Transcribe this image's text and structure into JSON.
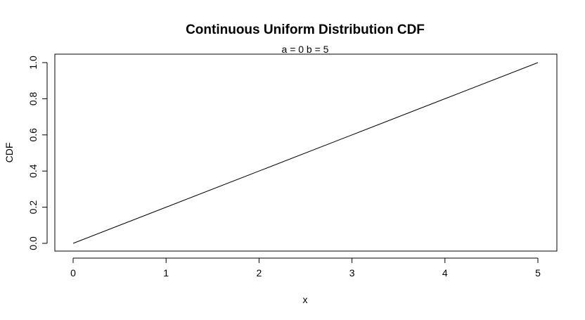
{
  "chart_data": {
    "type": "line",
    "title": "Continuous Uniform Distribution CDF",
    "subtitle": "a = 0  b = 5",
    "xlabel": "x",
    "ylabel": "CDF",
    "xlim": [
      0,
      5
    ],
    "ylim": [
      0,
      1
    ],
    "x_ticks": [
      0,
      1,
      2,
      3,
      4,
      5
    ],
    "x_tick_labels": [
      "0",
      "1",
      "2",
      "3",
      "4",
      "5"
    ],
    "y_ticks": [
      0,
      0.2,
      0.4,
      0.6,
      0.8,
      1.0
    ],
    "y_tick_labels": [
      "0.0",
      "0.2",
      "0.4",
      "0.6",
      "0.8",
      "1.0"
    ],
    "grid": false,
    "line_color": "#000000",
    "series": [
      {
        "x": [
          0,
          1,
          2,
          3,
          4,
          5
        ],
        "y": [
          0,
          0.2,
          0.4,
          0.6,
          0.8,
          1.0
        ]
      }
    ]
  }
}
